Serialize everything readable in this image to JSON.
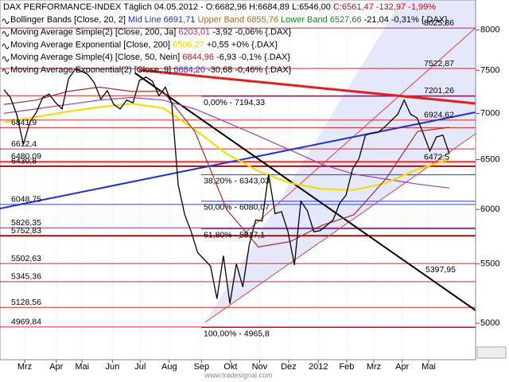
{
  "legend": [
    {
      "parts": [
        {
          "text": "DAX PERFORMANCE-INDEX Täglich  04.05.2012 - O:6682,96 H:6684,89 L:6546,00 ",
          "color": "#000000"
        },
        {
          "text": "C:6561,47 -132,97 -1,99%",
          "color": "#e00000"
        }
      ]
    },
    {
      "parts": [
        {
          "text": "Bollinger Bands [Close, 20, 2] ",
          "color": "#000000"
        },
        {
          "text": "Mid Line 6691,71 ",
          "color": "#2030d0"
        },
        {
          "text": "Upper Band 6855,76 ",
          "color": "#b07000"
        },
        {
          "text": "Lower Band 6527,66 ",
          "color": "#208020"
        },
        {
          "text": "-21,04 -0,31% {.DAX}",
          "color": "#000000"
        }
      ]
    },
    {
      "parts": [
        {
          "text": "Moving Average Simple(2) [Close, 200, Ja] ",
          "color": "#000000"
        },
        {
          "text": "6203,01 ",
          "color": "#b03090"
        },
        {
          "text": "-3,92 -0,06% {.DAX}",
          "color": "#000000"
        }
      ]
    },
    {
      "parts": [
        {
          "text": "Moving Average Exponential [Close, 200] ",
          "color": "#000000"
        },
        {
          "text": "6506,27 ",
          "color": "#e8d800"
        },
        {
          "text": "+0,55 +0% {.DAX}",
          "color": "#000000"
        }
      ]
    },
    {
      "parts": [
        {
          "text": "Moving Average Simple(4) [Close, 50, Nein] ",
          "color": "#000000"
        },
        {
          "text": "6844,96 ",
          "color": "#b02020"
        },
        {
          "text": "-6,93 -0,1% {.DAX}",
          "color": "#000000"
        }
      ]
    },
    {
      "parts": [
        {
          "text": "Moving Average Exponential(2) [Close, 9] ",
          "color": "#000000"
        },
        {
          "text": "6684,20 ",
          "color": "#2030d0"
        },
        {
          "text": "-30,68 -0,46% {.DAX}",
          "color": "#000000"
        }
      ]
    }
  ],
  "watermark": "www.tradesignal.com",
  "chart_data": {
    "type": "line",
    "log_scale": true,
    "grid": true,
    "ylim": [
      4716,
      8395
    ],
    "yticks": [
      5000,
      5500,
      6000,
      6500,
      7000,
      7500,
      8000
    ],
    "xlim": [
      -0.62,
      73.07
    ],
    "xticks": [
      {
        "value": 3.2,
        "label": "Mrz"
      },
      {
        "value": 8.1,
        "label": "Apr"
      },
      {
        "value": 12.1,
        "label": "Mai"
      },
      {
        "value": 16.8,
        "label": "Jun"
      },
      {
        "value": 21.1,
        "label": "Jul"
      },
      {
        "value": 25.6,
        "label": "Aug"
      },
      {
        "value": 30.6,
        "label": "Sep"
      },
      {
        "value": 35.1,
        "label": "Okt"
      },
      {
        "value": 39.6,
        "label": "Nov"
      },
      {
        "value": 44.1,
        "label": "Dez"
      },
      {
        "value": 48.7,
        "label": "2012"
      },
      {
        "value": 53.1,
        "label": "Feb"
      },
      {
        "value": 57.3,
        "label": "Mrz"
      },
      {
        "value": 61.7,
        "label": "Apr"
      },
      {
        "value": 65.8,
        "label": "Mai"
      }
    ],
    "series": [
      {
        "color": "#9b3fb0",
        "values": [
          7000,
          7050,
          7100,
          7150,
          7180,
          7150,
          7050,
          6900,
          6750,
          6600,
          6450,
          6350,
          6300,
          6250,
          6210
        ]
      },
      {
        "color": "#f0e000",
        "values": [
          6900,
          6960,
          7020,
          7070,
          7110,
          7060,
          6820,
          6560,
          6380,
          6260,
          6200,
          6190,
          6260,
          6400,
          6500
        ]
      },
      {
        "color": "#a03030",
        "values": [
          7100,
          7150,
          7250,
          7300,
          7250,
          7250,
          6800,
          6000,
          5650,
          5700,
          5850,
          5950,
          6300,
          6800,
          6845
        ]
      },
      {
        "color": "#000000",
        "values": [
          7270,
          7180,
          6980,
          6660,
          6900,
          7010,
          7180,
          7220,
          7120,
          7050,
          7400,
          7510,
          7490,
          7450,
          7350,
          7160,
          7260,
          7100,
          7050,
          7150,
          7120,
          7380,
          7420,
          7370,
          7200,
          7300,
          7110,
          6240,
          5950,
          5790,
          5600,
          5540,
          5480,
          5200,
          5570,
          5160,
          5500,
          5300,
          5670,
          5900,
          5890,
          6350,
          5960,
          5980,
          5790,
          5490,
          6080,
          5990,
          5790,
          5800,
          5850,
          5900,
          6060,
          6140,
          6400,
          6510,
          6760,
          6780,
          6790,
          6850,
          6920,
          6990,
          7150,
          6990,
          6950,
          6770,
          6590,
          6740,
          6760,
          6560
        ]
      }
    ],
    "levels": [
      {
        "value": 8025.86,
        "label": "8025,86",
        "side": "right",
        "color": "#e02020"
      },
      {
        "value": 7522.87,
        "label": "7522,87",
        "side": "right",
        "color": "#e02020"
      },
      {
        "value": 7201.26,
        "label": "7201,26",
        "side": "right",
        "color": "#e02020"
      },
      {
        "value": 6924.62,
        "label": "6924,62",
        "side": "right",
        "color": "#e02020"
      },
      {
        "value": 6472.5,
        "label": "6472,5",
        "side": "right",
        "color": "#e02020"
      },
      {
        "value": 6841.9,
        "label": "6841,9",
        "side": "left",
        "color": "#e02020"
      },
      {
        "value": 6612.4,
        "label": "6612,4",
        "side": "left",
        "color": "#e02020"
      },
      {
        "value": 6480.09,
        "label": "6480,09",
        "side": "left",
        "color": "#e02020"
      },
      {
        "value": 6430.8,
        "label": "6430,8",
        "side": "left",
        "color": "#a01010"
      },
      {
        "value": 6048.75,
        "label": "6048,75",
        "side": "left",
        "color": "#3040d0"
      },
      {
        "value": 5826.35,
        "label": "5826,35",
        "side": "left",
        "color": "#9030a0"
      },
      {
        "value": 5752.83,
        "label": "5752,83",
        "side": "left",
        "color": "#a01010"
      },
      {
        "value": 5502.63,
        "label": "5502,63",
        "side": "left",
        "color": "#e02020"
      },
      {
        "value": 5345.36,
        "label": "5345,36",
        "side": "left",
        "color": "#e02020"
      },
      {
        "value": 5128.56,
        "label": "5128,56",
        "side": "left",
        "color": "#e02020"
      },
      {
        "value": 4969.84,
        "label": "4969,84",
        "side": "left",
        "color": "#e02020"
      }
    ],
    "fib_levels": [
      {
        "value": 7194.33,
        "label": "0,00% - 7194,33"
      },
      {
        "value": 6343.03,
        "label": "38,20% - 6343,03"
      },
      {
        "value": 6080.07,
        "label": "50,00% - 6080,07"
      },
      {
        "value": 5817.1,
        "label": "61,80% - 5817,1"
      },
      {
        "value": 4965.8,
        "label": "100,00% - 4965,8"
      }
    ],
    "annotations": [
      "5397,95"
    ]
  }
}
